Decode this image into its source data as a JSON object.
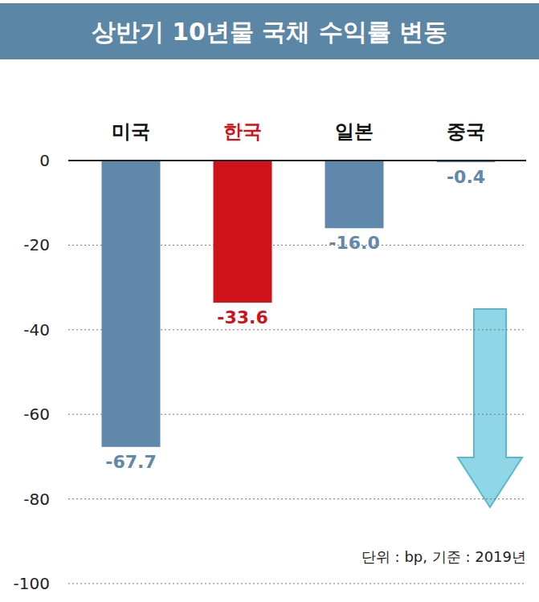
{
  "chart_data": {
    "type": "bar",
    "title": "상반기 10년물 국채 수익률 변동",
    "categories": [
      "미국",
      "한국",
      "일본",
      "중국"
    ],
    "values": [
      -67.7,
      -33.6,
      -16.0,
      -0.4
    ],
    "value_labels": [
      "-67.7",
      "-33.6",
      "-16.0",
      "-0.4"
    ],
    "colors": [
      "#5f88ab",
      "#d0121b",
      "#5f88ab",
      "#5f88ab"
    ],
    "ylim": [
      -100,
      0
    ],
    "yticks": [
      0,
      -20,
      -40,
      -60,
      -80,
      -100
    ],
    "grid": true,
    "data_labels": true,
    "annotations": [
      "단위 : bp, 기준 : 2019년"
    ]
  }
}
